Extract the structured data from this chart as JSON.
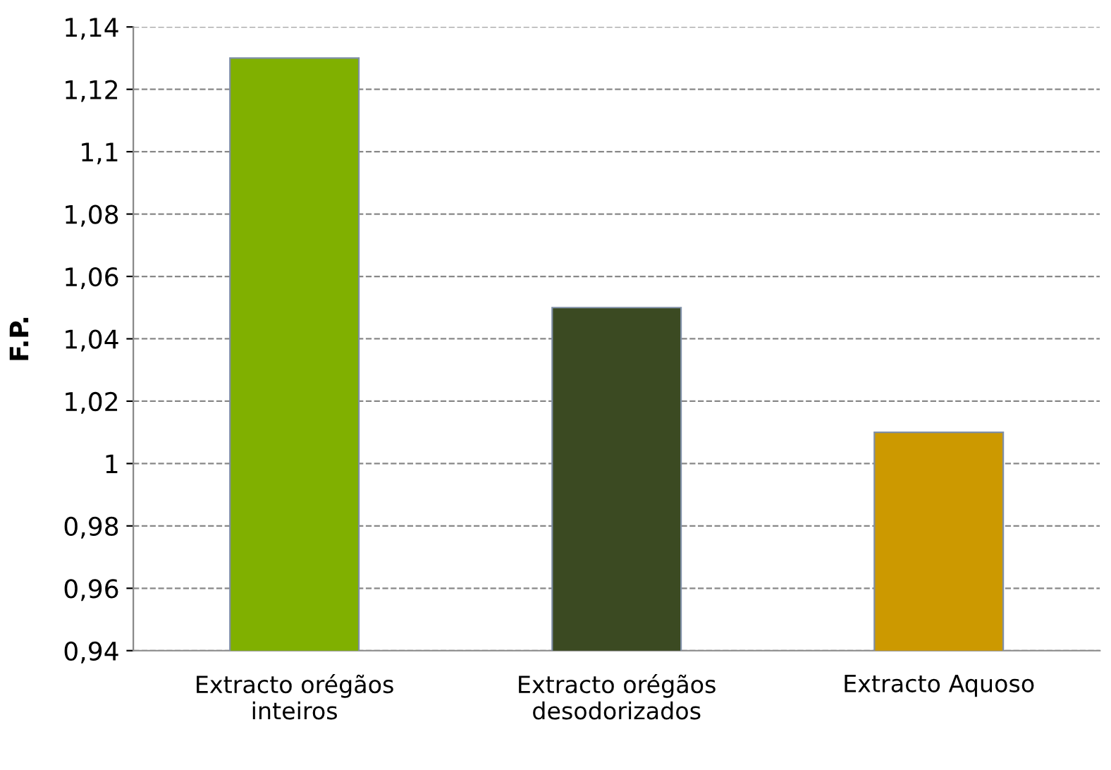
{
  "chart_data": {
    "type": "bar",
    "ylabel": "F.P.",
    "categories": [
      "Extracto orégãos\ninteiros",
      "Extracto orégãos\ndesodorizados",
      "Extracto Aquoso"
    ],
    "values": [
      1.13,
      1.05,
      1.01
    ],
    "colors": [
      "#80b000",
      "#3b4a22",
      "#cc9900"
    ],
    "ylim": [
      0.94,
      1.14
    ],
    "yticks": [
      {
        "value": 0.94,
        "label": "0,94"
      },
      {
        "value": 0.96,
        "label": "0,96"
      },
      {
        "value": 0.98,
        "label": "0,98"
      },
      {
        "value": 1,
        "label": "1"
      },
      {
        "value": 1.02,
        "label": "1,02"
      },
      {
        "value": 1.04,
        "label": "1,04"
      },
      {
        "value": 1.06,
        "label": "1,06"
      },
      {
        "value": 1.08,
        "label": "1,08"
      },
      {
        "value": 1.1,
        "label": "1,1"
      },
      {
        "value": 1.12,
        "label": "1,12"
      },
      {
        "value": 1.14,
        "label": "1,14"
      }
    ],
    "grid": "y",
    "legend": false
  }
}
